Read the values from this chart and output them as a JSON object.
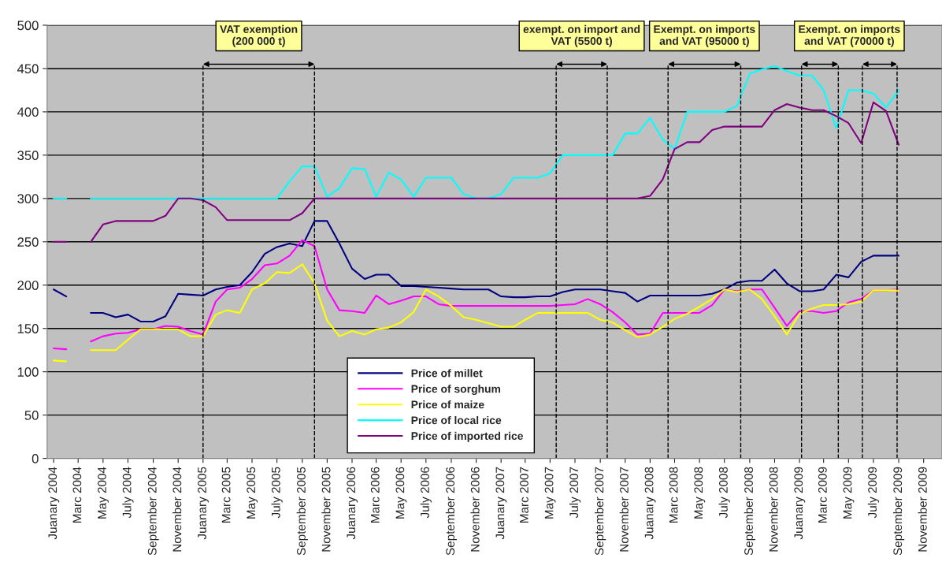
{
  "chart_data": {
    "type": "line",
    "x": [
      "2004-01",
      "2004-02",
      "2004-03",
      "2004-04",
      "2004-05",
      "2004-06",
      "2004-07",
      "2004-08",
      "2004-09",
      "2004-10",
      "2004-11",
      "2004-12",
      "2005-01",
      "2005-02",
      "2005-03",
      "2005-04",
      "2005-05",
      "2005-06",
      "2005-07",
      "2005-08",
      "2005-09",
      "2005-10",
      "2005-11",
      "2005-12",
      "2006-01",
      "2006-02",
      "2006-03",
      "2006-04",
      "2006-05",
      "2006-06",
      "2006-07",
      "2006-08",
      "2006-09",
      "2006-10",
      "2006-11",
      "2006-12",
      "2007-01",
      "2007-02",
      "2007-03",
      "2007-04",
      "2007-05",
      "2007-06",
      "2007-07",
      "2007-08",
      "2007-09",
      "2007-10",
      "2007-11",
      "2007-12",
      "2008-01",
      "2008-02",
      "2008-03",
      "2008-04",
      "2008-05",
      "2008-06",
      "2008-07",
      "2008-08",
      "2008-09",
      "2008-10",
      "2008-11",
      "2008-12",
      "2009-01",
      "2009-02",
      "2009-03",
      "2009-04",
      "2009-05",
      "2009-06",
      "2009-07",
      "2009-08",
      "2009-09"
    ],
    "series": [
      {
        "name": "Price of millet",
        "color": "#000080",
        "values": [
          195,
          187,
          null,
          168,
          168,
          163,
          166,
          158,
          158,
          164,
          190,
          189,
          188,
          195,
          198,
          200,
          215,
          236,
          244,
          248,
          245,
          274,
          274,
          248,
          219,
          207,
          212,
          212,
          199,
          199,
          198,
          197,
          196,
          195,
          195,
          195,
          187,
          186,
          186,
          187,
          187,
          192,
          195,
          195,
          195,
          193,
          191,
          181,
          188,
          188,
          188,
          188,
          188,
          190,
          195,
          203,
          205,
          205,
          218,
          202,
          193,
          193,
          195,
          212,
          209,
          227,
          234,
          234,
          234
        ]
      },
      {
        "name": "Price of sorghum",
        "color": "#ff00ff",
        "values": [
          127,
          126,
          null,
          135,
          141,
          144,
          145,
          149,
          149,
          153,
          152,
          147,
          143,
          181,
          195,
          197,
          207,
          223,
          225,
          234,
          252,
          245,
          195,
          171,
          170,
          168,
          188,
          178,
          182,
          187,
          187,
          178,
          176,
          176,
          176,
          176,
          176,
          176,
          176,
          176,
          176,
          177,
          178,
          184,
          178,
          169,
          157,
          143,
          144,
          168,
          168,
          168,
          168,
          177,
          195,
          193,
          195,
          195,
          174,
          153,
          170,
          170,
          168,
          170,
          180,
          184,
          194,
          194,
          195
        ]
      },
      {
        "name": "Price of maize",
        "color": "#ffff00",
        "values": [
          113,
          112,
          null,
          125,
          125,
          125,
          137,
          149,
          149,
          149,
          149,
          141,
          141,
          166,
          171,
          168,
          195,
          202,
          215,
          214,
          224,
          202,
          159,
          141,
          147,
          143,
          149,
          151,
          157,
          169,
          195,
          187,
          176,
          163,
          160,
          156,
          152,
          152,
          160,
          168,
          168,
          168,
          168,
          168,
          160,
          157,
          148,
          140,
          143,
          152,
          161,
          167,
          175,
          184,
          195,
          192,
          195,
          184,
          164,
          143,
          167,
          173,
          177,
          177,
          178,
          181,
          194,
          194,
          194
        ]
      },
      {
        "name": "Price of local rice",
        "color": "#00ffff",
        "values": [
          300,
          300,
          null,
          300,
          300,
          300,
          300,
          300,
          300,
          300,
          300,
          300,
          300,
          300,
          300,
          300,
          300,
          300,
          300,
          320,
          337,
          337,
          302,
          312,
          335,
          334,
          302,
          330,
          322,
          302,
          324,
          324,
          324,
          305,
          300,
          300,
          305,
          324,
          324,
          324,
          329,
          350,
          350,
          350,
          350,
          350,
          375,
          375,
          393,
          368,
          357,
          400,
          400,
          400,
          400,
          407,
          444,
          449,
          453,
          447,
          442,
          442,
          425,
          381,
          425,
          425,
          421,
          405,
          425
        ]
      },
      {
        "name": "Price of imported rice",
        "color": "#800080",
        "values": [
          250,
          250,
          null,
          250,
          270,
          274,
          274,
          274,
          274,
          280,
          300,
          300,
          298,
          290,
          275,
          275,
          275,
          275,
          275,
          275,
          283,
          300,
          300,
          300,
          300,
          300,
          300,
          300,
          300,
          300,
          300,
          300,
          300,
          300,
          300,
          300,
          300,
          300,
          300,
          300,
          300,
          300,
          300,
          300,
          300,
          300,
          300,
          300,
          303,
          322,
          357,
          365,
          365,
          379,
          383,
          383,
          383,
          383,
          402,
          409,
          405,
          402,
          402,
          395,
          387,
          364,
          411,
          401,
          362
        ]
      }
    ],
    "xlim": [
      "2003-12-16",
      "2009-12-16"
    ],
    "xticks": [
      {
        "value": "2004-01",
        "label": "Juanary 2004"
      },
      {
        "value": "2004-03",
        "label": "Marc 2004"
      },
      {
        "value": "2004-05",
        "label": "May 2004"
      },
      {
        "value": "2004-07",
        "label": "July 2004"
      },
      {
        "value": "2004-09",
        "label": "September 2004"
      },
      {
        "value": "2004-11",
        "label": "November 2004"
      },
      {
        "value": "2005-01",
        "label": "Juanary 2005"
      },
      {
        "value": "2005-03",
        "label": "Marc 2005"
      },
      {
        "value": "2005-05",
        "label": "May 2005"
      },
      {
        "value": "2005-07",
        "label": "July 2005"
      },
      {
        "value": "2005-09",
        "label": "September 2005"
      },
      {
        "value": "2005-11",
        "label": "November 2005"
      },
      {
        "value": "2006-01",
        "label": "Juanary 2006"
      },
      {
        "value": "2006-03",
        "label": "Marc 2006"
      },
      {
        "value": "2006-05",
        "label": "May 2006"
      },
      {
        "value": "2006-07",
        "label": "July 2006"
      },
      {
        "value": "2006-09",
        "label": "September 2006"
      },
      {
        "value": "2006-11",
        "label": "November 2006"
      },
      {
        "value": "2007-01",
        "label": "Juanary 2007"
      },
      {
        "value": "2007-03",
        "label": "Marc 2007"
      },
      {
        "value": "2007-05",
        "label": "May 2007"
      },
      {
        "value": "2007-07",
        "label": "July 2007"
      },
      {
        "value": "2007-09",
        "label": "September 2007"
      },
      {
        "value": "2007-11",
        "label": "November 2007"
      },
      {
        "value": "2008-01",
        "label": "Juanary 2008"
      },
      {
        "value": "2008-03",
        "label": "Marc 2008"
      },
      {
        "value": "2008-05",
        "label": "May 2008"
      },
      {
        "value": "2008-07",
        "label": "July 2008"
      },
      {
        "value": "2008-09",
        "label": "September 2008"
      },
      {
        "value": "2008-11",
        "label": "November 2008"
      },
      {
        "value": "2009-01",
        "label": "Juanary 2009"
      },
      {
        "value": "2009-03",
        "label": "Marc 2009"
      },
      {
        "value": "2009-05",
        "label": "May 2009"
      },
      {
        "value": "2009-07",
        "label": "July 2009"
      },
      {
        "value": "2009-09",
        "label": "September 2009"
      },
      {
        "value": "2009-11",
        "label": "November 2009"
      }
    ],
    "ylim": [
      0,
      500
    ],
    "yticks": [
      0,
      50,
      100,
      150,
      200,
      250,
      300,
      350,
      400,
      450,
      500
    ],
    "grid": "y",
    "legend": "bottom",
    "ref_lines": [
      {
        "axis": "x",
        "value": "2005-01",
        "line_style": "dashed",
        "color": "#000000"
      },
      {
        "axis": "x",
        "value": "2005-10",
        "line_style": "dashed",
        "color": "#000000"
      },
      {
        "axis": "x",
        "value": "2007-05-16",
        "line_style": "dashed",
        "color": "#000000"
      },
      {
        "axis": "x",
        "value": "2007-09-18",
        "line_style": "dashed",
        "color": "#000000"
      },
      {
        "axis": "x",
        "value": "2008-02-14",
        "line_style": "dashed",
        "color": "#000000"
      },
      {
        "axis": "x",
        "value": "2008-08-10",
        "line_style": "dashed",
        "color": "#000000"
      },
      {
        "axis": "x",
        "value": "2009-01-06",
        "line_style": "dashed",
        "color": "#000000"
      },
      {
        "axis": "x",
        "value": "2009-04-06",
        "line_style": "dashed",
        "color": "#000000"
      },
      {
        "axis": "x",
        "value": "2009-06-04",
        "line_style": "dashed",
        "color": "#000000"
      },
      {
        "axis": "x",
        "value": "2009-08-28",
        "line_style": "dashed",
        "color": "#000000"
      }
    ],
    "annotations": [
      "VAT exemption\n(200 000 t)",
      "exempt. on import and\nVAT (5500 t)",
      "Exempt. on imports\nand VAT (95000 t)",
      "Exempt. on imports\nand VAT (70000 t)"
    ]
  }
}
